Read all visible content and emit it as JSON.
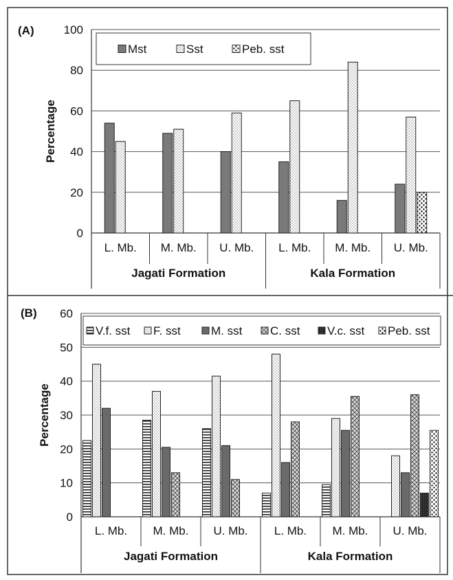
{
  "chart_data": [
    {
      "type": "bar",
      "panel_label": "(A)",
      "ylabel": "Percentage",
      "ylim": [
        0,
        100
      ],
      "yticks": [
        0,
        20,
        40,
        60,
        80,
        100
      ],
      "categories": [
        "L. Mb.",
        "M. Mb.",
        "U. Mb.",
        "L. Mb.",
        "M. Mb.",
        "U. Mb."
      ],
      "groups": [
        {
          "label": "Jagati Formation",
          "span": [
            0,
            2
          ]
        },
        {
          "label": "Kala Formation",
          "span": [
            3,
            5
          ]
        }
      ],
      "legend_position": "top-left",
      "grid": true,
      "series": [
        {
          "name": "Mst",
          "pattern": "solid-gray",
          "values": [
            54,
            49,
            40,
            35,
            16,
            24
          ]
        },
        {
          "name": "Sst",
          "pattern": "fine-dots",
          "values": [
            45,
            51,
            59,
            65,
            84,
            57
          ]
        },
        {
          "name": "Peb. sst",
          "pattern": "coarse-dots",
          "values": [
            0,
            0,
            0,
            0,
            0,
            20
          ]
        }
      ]
    },
    {
      "type": "bar",
      "panel_label": "(B)",
      "ylabel": "Percentage",
      "ylim": [
        0,
        60
      ],
      "yticks": [
        0,
        10,
        20,
        30,
        40,
        50,
        60
      ],
      "categories": [
        "L. Mb.",
        "M. Mb.",
        "U. Mb.",
        "L. Mb.",
        "M. Mb.",
        "U. Mb."
      ],
      "groups": [
        {
          "label": "Jagati Formation",
          "span": [
            0,
            2
          ]
        },
        {
          "label": "Kala Formation",
          "span": [
            3,
            5
          ]
        }
      ],
      "legend_position": "top",
      "grid": true,
      "series": [
        {
          "name": "V.f. sst",
          "pattern": "horizontal-lines",
          "values": [
            22.5,
            28.5,
            26,
            7,
            9.5,
            0
          ]
        },
        {
          "name": "F. sst",
          "pattern": "fine-dots",
          "values": [
            45,
            37,
            41.5,
            48,
            29,
            18
          ]
        },
        {
          "name": "M. sst",
          "pattern": "dark-gray",
          "values": [
            32,
            20.5,
            21,
            16,
            25.5,
            13
          ]
        },
        {
          "name": "C. sst",
          "pattern": "crosshatch",
          "values": [
            0,
            13,
            11,
            28,
            35.5,
            36
          ]
        },
        {
          "name": "V.c. sst",
          "pattern": "dark-dots",
          "values": [
            0,
            0,
            0,
            0,
            0,
            7
          ]
        },
        {
          "name": "Peb. sst",
          "pattern": "coarse-dots",
          "values": [
            0,
            0,
            0,
            0,
            0,
            25.5
          ]
        }
      ]
    }
  ]
}
